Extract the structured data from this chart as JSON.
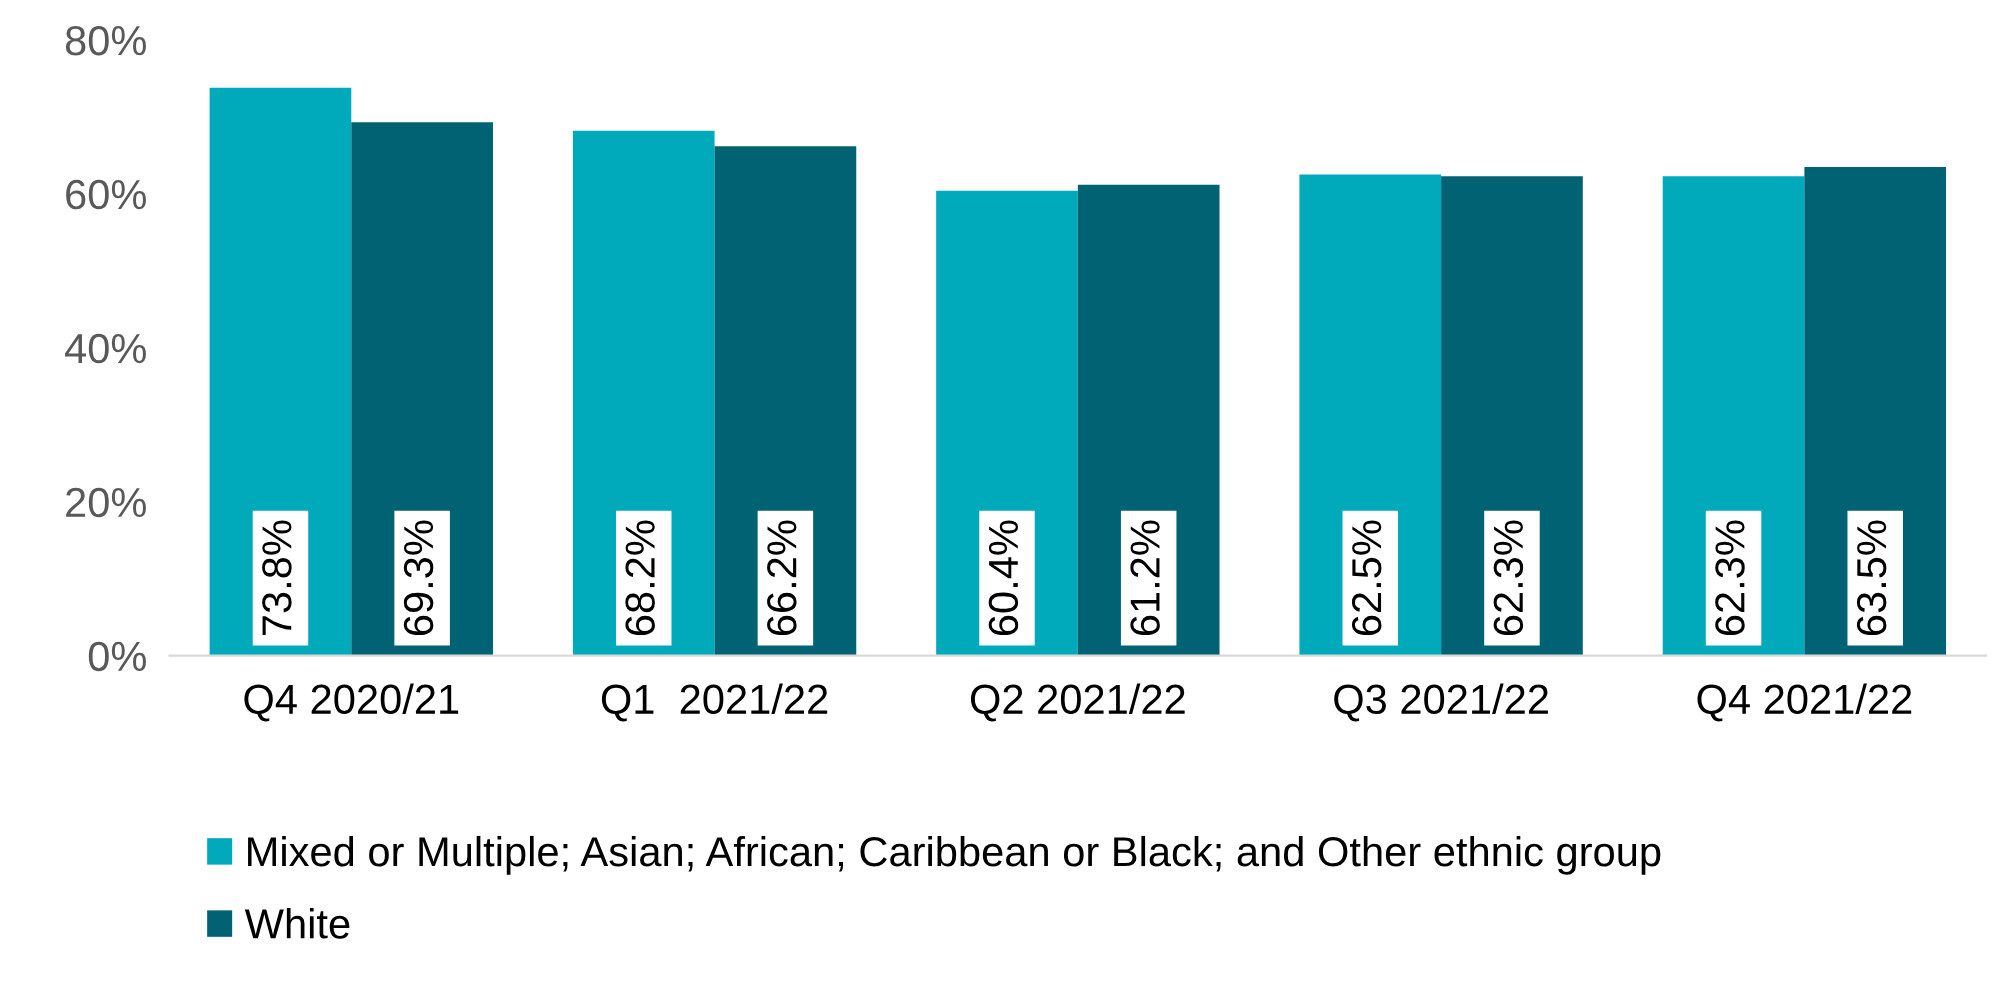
{
  "chart_data": {
    "type": "bar",
    "categories": [
      "Q4 2020/21",
      "Q1  2021/22",
      "Q2 2021/22",
      "Q3 2021/22",
      "Q4 2021/22"
    ],
    "series": [
      {
        "name": "Mixed or Multiple; Asian; African; Caribbean or Black; and Other ethnic group",
        "color": "#00aabb",
        "values": [
          73.8,
          68.2,
          60.4,
          62.5,
          62.3
        ],
        "value_labels": [
          "73.8%",
          "68.2%",
          "60.4%",
          "62.5%",
          "62.3%"
        ]
      },
      {
        "name": "White",
        "color": "#006272",
        "values": [
          69.3,
          66.2,
          61.2,
          62.3,
          63.5
        ],
        "value_labels": [
          "69.3%",
          "66.2%",
          "61.2%",
          "62.3%",
          "63.5%"
        ]
      }
    ],
    "ylim": [
      0,
      80
    ],
    "yticks": [
      {
        "value": 0,
        "label": "0%"
      },
      {
        "value": 20,
        "label": "20%"
      },
      {
        "value": 40,
        "label": "40%"
      },
      {
        "value": 60,
        "label": "60%"
      },
      {
        "value": 80,
        "label": "80%"
      }
    ],
    "grid": false,
    "legend": "bottom"
  }
}
